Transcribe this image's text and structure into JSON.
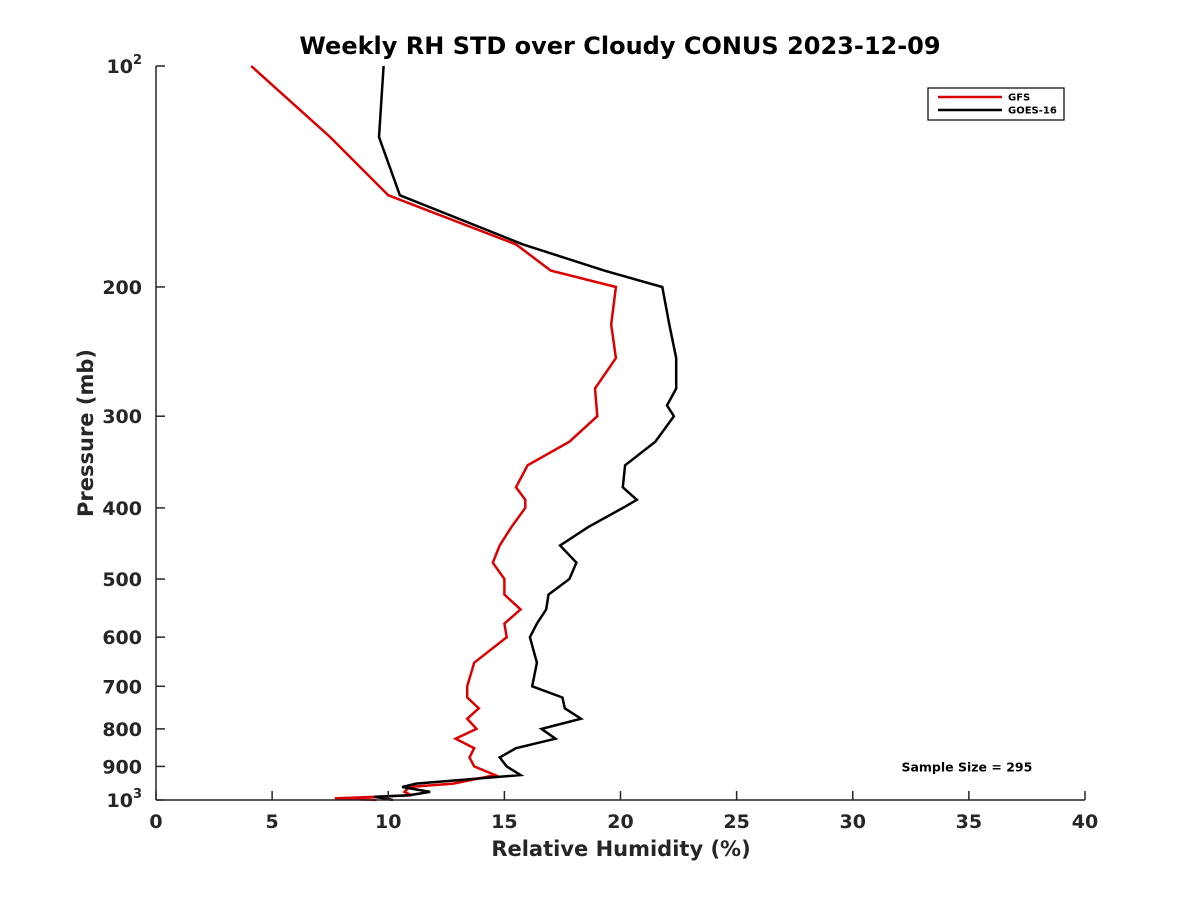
{
  "chart_data": {
    "type": "line",
    "title": "Weekly RH STD over Cloudy CONUS 2023-12-09",
    "xlabel": "Relative Humidity (%)",
    "ylabel": "Pressure (mb)",
    "xlim": [
      0,
      40
    ],
    "ylim": [
      100,
      1000
    ],
    "yscale": "log",
    "y_reversed": true,
    "x_ticks": [
      0,
      5,
      10,
      15,
      20,
      25,
      30,
      35,
      40
    ],
    "x_tick_labels": [
      "0",
      "5",
      "10",
      "15",
      "20",
      "25",
      "30",
      "35",
      "40"
    ],
    "y_ticks": [
      100,
      200,
      300,
      400,
      500,
      600,
      700,
      800,
      900,
      1000
    ],
    "y_tick_labels": [
      {
        "value": 100,
        "base": "10",
        "exp": "2"
      },
      {
        "value": 200,
        "base": "200",
        "exp": ""
      },
      {
        "value": 300,
        "base": "300",
        "exp": ""
      },
      {
        "value": 400,
        "base": "400",
        "exp": ""
      },
      {
        "value": 500,
        "base": "500",
        "exp": ""
      },
      {
        "value": 600,
        "base": "600",
        "exp": ""
      },
      {
        "value": 700,
        "base": "700",
        "exp": ""
      },
      {
        "value": 800,
        "base": "800",
        "exp": ""
      },
      {
        "value": 900,
        "base": "900",
        "exp": ""
      },
      {
        "value": 1000,
        "base": "10",
        "exp": "3"
      }
    ],
    "legend_position": "top-right",
    "series": [
      {
        "name": "GFS",
        "color": "#dd0000",
        "points": [
          [
            4.1,
            100
          ],
          [
            7.5,
            125
          ],
          [
            10.0,
            150
          ],
          [
            15.5,
            175
          ],
          [
            17.0,
            190
          ],
          [
            19.8,
            200
          ],
          [
            19.6,
            225
          ],
          [
            19.8,
            250
          ],
          [
            18.9,
            275
          ],
          [
            19.0,
            300
          ],
          [
            17.8,
            325
          ],
          [
            16.0,
            350
          ],
          [
            15.5,
            375
          ],
          [
            15.9,
            390
          ],
          [
            15.9,
            400
          ],
          [
            15.3,
            425
          ],
          [
            14.8,
            450
          ],
          [
            14.5,
            475
          ],
          [
            15.0,
            500
          ],
          [
            15.0,
            525
          ],
          [
            15.7,
            550
          ],
          [
            15.0,
            575
          ],
          [
            15.1,
            600
          ],
          [
            13.7,
            650
          ],
          [
            13.4,
            700
          ],
          [
            13.4,
            725
          ],
          [
            13.9,
            750
          ],
          [
            13.4,
            775
          ],
          [
            13.8,
            800
          ],
          [
            12.9,
            825
          ],
          [
            13.7,
            850
          ],
          [
            13.5,
            875
          ],
          [
            13.7,
            900
          ],
          [
            14.6,
            925
          ],
          [
            12.8,
            950
          ],
          [
            10.9,
            960
          ],
          [
            10.7,
            975
          ],
          [
            11.0,
            985
          ],
          [
            9.5,
            990
          ],
          [
            7.7,
            995
          ],
          [
            9.5,
            1000
          ]
        ]
      },
      {
        "name": "GOES-16",
        "color": "#000000",
        "points": [
          [
            9.8,
            100
          ],
          [
            9.6,
            125
          ],
          [
            10.5,
            150
          ],
          [
            15.8,
            175
          ],
          [
            19.3,
            190
          ],
          [
            21.8,
            200
          ],
          [
            22.1,
            225
          ],
          [
            22.4,
            250
          ],
          [
            22.4,
            275
          ],
          [
            22.0,
            290
          ],
          [
            22.3,
            300
          ],
          [
            21.5,
            325
          ],
          [
            20.2,
            350
          ],
          [
            20.1,
            375
          ],
          [
            20.7,
            390
          ],
          [
            20.1,
            400
          ],
          [
            18.6,
            425
          ],
          [
            17.4,
            450
          ],
          [
            18.1,
            475
          ],
          [
            17.8,
            500
          ],
          [
            16.9,
            525
          ],
          [
            16.8,
            550
          ],
          [
            16.4,
            575
          ],
          [
            16.1,
            600
          ],
          [
            16.4,
            650
          ],
          [
            16.2,
            700
          ],
          [
            17.5,
            725
          ],
          [
            17.6,
            750
          ],
          [
            18.3,
            775
          ],
          [
            16.6,
            800
          ],
          [
            17.2,
            825
          ],
          [
            15.5,
            850
          ],
          [
            14.8,
            875
          ],
          [
            15.1,
            900
          ],
          [
            15.7,
            925
          ],
          [
            11.2,
            950
          ],
          [
            10.6,
            960
          ],
          [
            11.8,
            975
          ],
          [
            10.9,
            985
          ],
          [
            9.4,
            990
          ],
          [
            10.2,
            1000
          ]
        ]
      }
    ],
    "annotations": [
      {
        "text": "Sample Size = 295",
        "x": 35,
        "y": 900
      }
    ]
  }
}
